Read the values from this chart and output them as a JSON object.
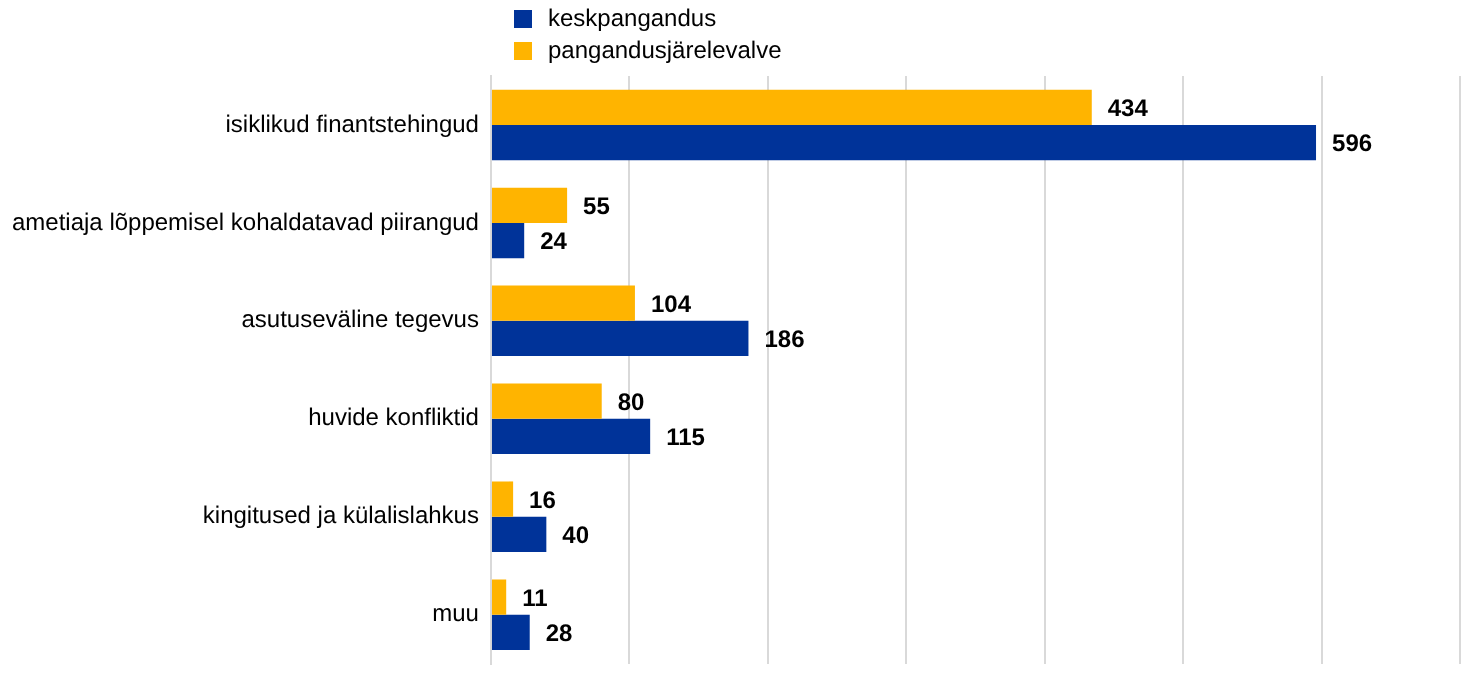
{
  "chart_data": {
    "type": "bar",
    "orientation": "horizontal",
    "categories": [
      "isiklikud finantstehingud",
      "ametiaja lõppemisel kohaldatavad piirangud",
      "asutuseväline tegevus",
      "huvide konfliktid",
      "kingitused ja külalislahkus",
      "muu"
    ],
    "series": [
      {
        "name": "keskpangandus",
        "color": "#003399",
        "values": [
          596,
          24,
          186,
          115,
          40,
          28
        ]
      },
      {
        "name": "pangandusjärelevalve",
        "color": "#ffb400",
        "values": [
          434,
          55,
          104,
          80,
          16,
          11
        ]
      }
    ],
    "xlim": [
      0,
      700
    ],
    "xticks": [
      {
        "value": 0,
        "label": null
      },
      {
        "value": 100,
        "label": null
      },
      {
        "value": 200,
        "label": null
      },
      {
        "value": 300,
        "label": null
      },
      {
        "value": 400,
        "label": null
      },
      {
        "value": 500,
        "label": null
      },
      {
        "value": 600,
        "label": null
      },
      {
        "value": 700,
        "label": null
      }
    ],
    "tick_labels": "y",
    "grid": "x",
    "legend": "top",
    "data_labels": true
  }
}
